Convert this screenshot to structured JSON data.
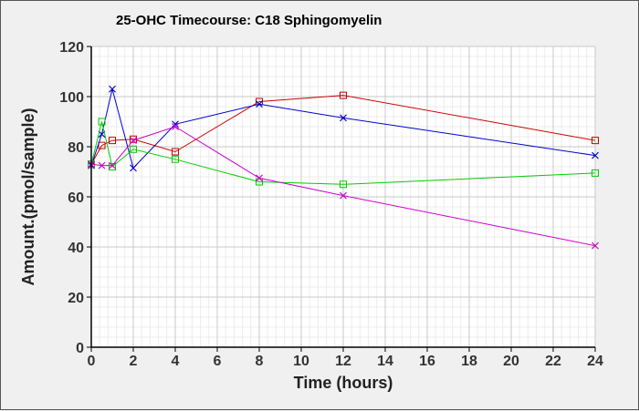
{
  "chart_data": {
    "type": "line",
    "title": "25-OHC Timecourse: C18 Sphingomyelin",
    "xlabel": "Time (hours)",
    "ylabel": "Amount.(pmol/sample)",
    "xlim": [
      0,
      24
    ],
    "ylim": [
      0,
      120
    ],
    "x_ticks": [
      "0",
      "2",
      "4",
      "6",
      "8",
      "10",
      "12",
      "14",
      "16",
      "18",
      "20",
      "22",
      "24"
    ],
    "y_ticks": [
      "0",
      "20",
      "40",
      "60",
      "80",
      "100",
      "120"
    ],
    "grid": true,
    "legend": "none",
    "series": [
      {
        "name": "red-square",
        "color": "#cc0000",
        "marker": "square",
        "x": [
          0,
          0.5,
          1,
          2,
          4,
          8,
          12,
          24
        ],
        "values": [
          73,
          80.5,
          82.5,
          83,
          78,
          98,
          100.5,
          82.5
        ]
      },
      {
        "name": "blue-x",
        "color": "#0000cc",
        "marker": "x",
        "x": [
          0,
          0.5,
          1,
          2,
          4,
          8,
          12,
          24
        ],
        "values": [
          72.5,
          85,
          103,
          71.5,
          89,
          97,
          91.5,
          76.5
        ]
      },
      {
        "name": "green-square",
        "color": "#00cc00",
        "marker": "square",
        "x": [
          0,
          0.5,
          1,
          2,
          4,
          8,
          12,
          24
        ],
        "values": [
          73,
          90,
          72,
          79,
          75,
          66,
          65,
          69.5
        ]
      },
      {
        "name": "magenta-x",
        "color": "#cc00cc",
        "marker": "x",
        "x": [
          0,
          0.5,
          1,
          2,
          4,
          8,
          12,
          24
        ],
        "values": [
          73,
          72.5,
          72.5,
          82.5,
          88,
          67.5,
          60.5,
          40.5
        ]
      }
    ]
  }
}
